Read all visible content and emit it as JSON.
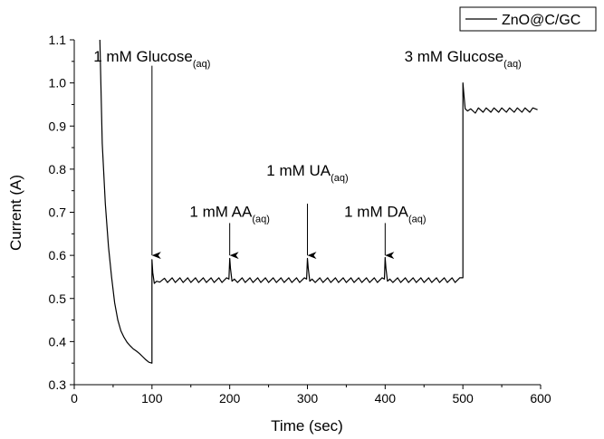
{
  "chart_data": {
    "type": "line",
    "xlabel": "Time (sec)",
    "ylabel": "Current (A)",
    "xlim": [
      0,
      600
    ],
    "ylim": [
      0.3,
      1.1
    ],
    "x_ticks": [
      "0",
      "100",
      "200",
      "300",
      "400",
      "500",
      "600"
    ],
    "y_ticks": [
      "0.3",
      "0.4",
      "0.5",
      "0.6",
      "0.7",
      "0.8",
      "0.9",
      "1.0",
      "1.1"
    ],
    "grid": false,
    "legend_position": "top-right",
    "series": [
      {
        "name": "ZnO@C/GC",
        "color": "#000000",
        "x": [
          33,
          36,
          40,
          44,
          48,
          52,
          56,
          60,
          64,
          68,
          72,
          76,
          80,
          84,
          88,
          92,
          96,
          100,
          100,
          101,
          103,
          106,
          110,
          116,
          120,
          126,
          130,
          136,
          140,
          146,
          150,
          156,
          160,
          166,
          170,
          176,
          180,
          186,
          190,
          196,
          199,
          200,
          201,
          203,
          206,
          210,
          216,
          220,
          226,
          230,
          236,
          240,
          246,
          250,
          256,
          260,
          266,
          270,
          276,
          280,
          286,
          290,
          296,
          299,
          300,
          301,
          303,
          306,
          310,
          316,
          320,
          326,
          330,
          336,
          340,
          346,
          350,
          356,
          360,
          366,
          370,
          376,
          380,
          386,
          390,
          396,
          399,
          400,
          401,
          403,
          406,
          410,
          416,
          420,
          426,
          430,
          436,
          440,
          446,
          450,
          456,
          460,
          466,
          470,
          476,
          480,
          486,
          490,
          496,
          500,
          500,
          501,
          503,
          506,
          510,
          516,
          520,
          526,
          530,
          536,
          540,
          546,
          550,
          556,
          560,
          566,
          570,
          576,
          580,
          586,
          590,
          596
        ],
        "y": [
          1.1,
          0.86,
          0.72,
          0.62,
          0.55,
          0.49,
          0.45,
          0.425,
          0.41,
          0.398,
          0.39,
          0.383,
          0.378,
          0.372,
          0.365,
          0.358,
          0.352,
          0.35,
          0.59,
          0.56,
          0.535,
          0.54,
          0.538,
          0.547,
          0.537,
          0.548,
          0.537,
          0.548,
          0.537,
          0.548,
          0.537,
          0.548,
          0.537,
          0.548,
          0.537,
          0.548,
          0.537,
          0.548,
          0.537,
          0.548,
          0.545,
          0.593,
          0.57,
          0.54,
          0.545,
          0.537,
          0.548,
          0.537,
          0.548,
          0.537,
          0.548,
          0.537,
          0.548,
          0.537,
          0.548,
          0.537,
          0.548,
          0.537,
          0.548,
          0.537,
          0.548,
          0.537,
          0.548,
          0.545,
          0.593,
          0.57,
          0.54,
          0.545,
          0.537,
          0.548,
          0.537,
          0.548,
          0.537,
          0.548,
          0.537,
          0.548,
          0.537,
          0.548,
          0.537,
          0.548,
          0.537,
          0.548,
          0.537,
          0.548,
          0.537,
          0.548,
          0.545,
          0.595,
          0.57,
          0.54,
          0.545,
          0.537,
          0.548,
          0.537,
          0.548,
          0.537,
          0.548,
          0.537,
          0.548,
          0.537,
          0.548,
          0.537,
          0.548,
          0.537,
          0.548,
          0.537,
          0.548,
          0.537,
          0.548,
          0.548,
          1.0,
          0.98,
          0.94,
          0.935,
          0.94,
          0.93,
          0.942,
          0.932,
          0.942,
          0.932,
          0.942,
          0.932,
          0.942,
          0.932,
          0.942,
          0.932,
          0.942,
          0.932,
          0.942,
          0.932,
          0.942,
          0.938
        ]
      }
    ],
    "annotations": [
      {
        "main": "1 mM Glucose",
        "sub": "(aq)",
        "x": 100,
        "arrow_top": 1.04,
        "arrow_tip": 0.6,
        "text_y": 1.05
      },
      {
        "main": "1 mM AA",
        "sub": "(aq)",
        "x": 200,
        "arrow_top": 0.675,
        "arrow_tip": 0.6,
        "text_y": 0.69
      },
      {
        "main": "1 mM UA",
        "sub": "(aq)",
        "x": 300,
        "arrow_top": 0.72,
        "arrow_tip": 0.6,
        "text_y": 0.785
      },
      {
        "main": "1 mM DA",
        "sub": "(aq)",
        "x": 400,
        "arrow_top": 0.675,
        "arrow_tip": 0.6,
        "text_y": 0.69
      },
      {
        "main": "3 mM Glucose",
        "sub": "(aq)",
        "x": 500,
        "arrow_top": null,
        "arrow_tip": null,
        "text_y": 1.05
      }
    ]
  }
}
